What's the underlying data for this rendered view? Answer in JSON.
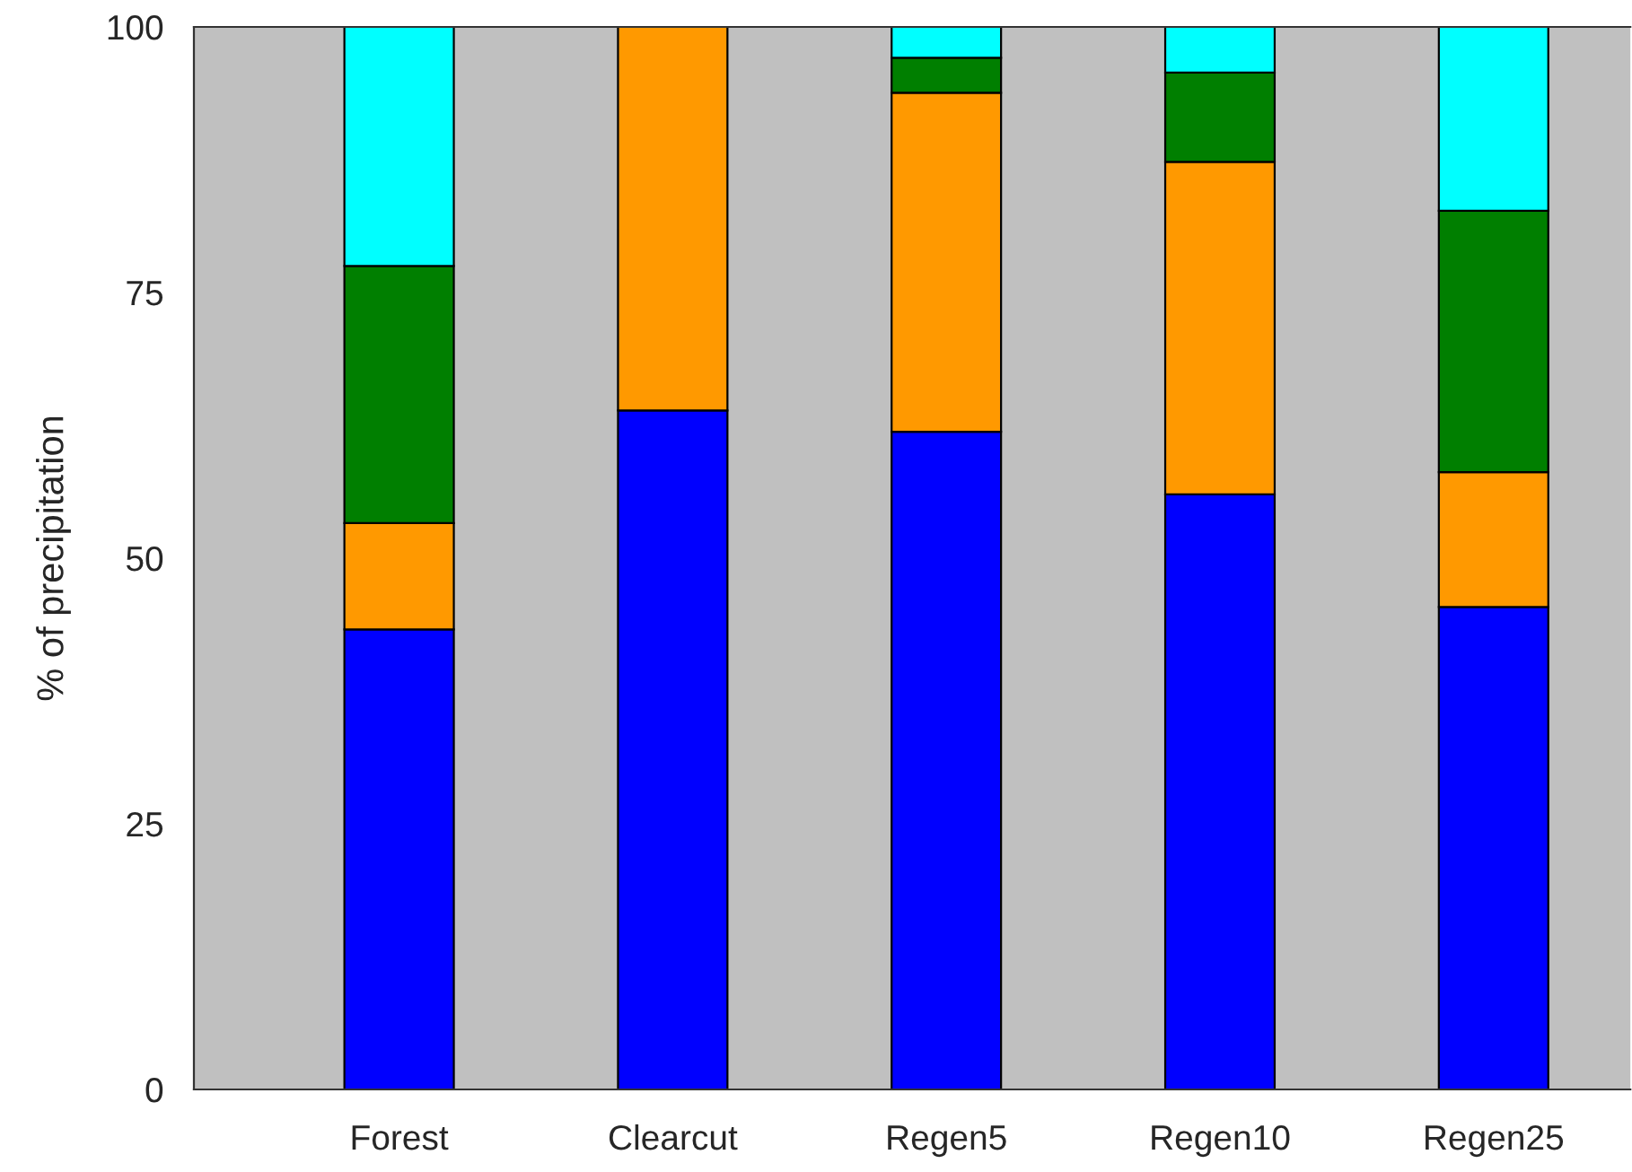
{
  "chart_data": {
    "type": "bar",
    "stacked": true,
    "ylabel": "% of precipitation",
    "categories": [
      "Forest",
      "Clearcut",
      "Regen5",
      "Regen10",
      "Regen25"
    ],
    "series": [
      {
        "color": "#0000ff",
        "values": [
          43.3,
          63.9,
          61.9,
          56.0,
          45.4
        ]
      },
      {
        "color": "#ff9900",
        "values": [
          10.0,
          36.1,
          31.9,
          31.3,
          12.7
        ]
      },
      {
        "color": "#007f00",
        "values": [
          24.2,
          0,
          3.3,
          8.4,
          24.6
        ]
      },
      {
        "color": "#00ffff",
        "values": [
          22.5,
          0,
          2.9,
          4.3,
          17.3
        ]
      }
    ],
    "ylim": [
      0,
      100
    ],
    "yticks": [
      0,
      25,
      50,
      75,
      100
    ],
    "grid": false
  }
}
